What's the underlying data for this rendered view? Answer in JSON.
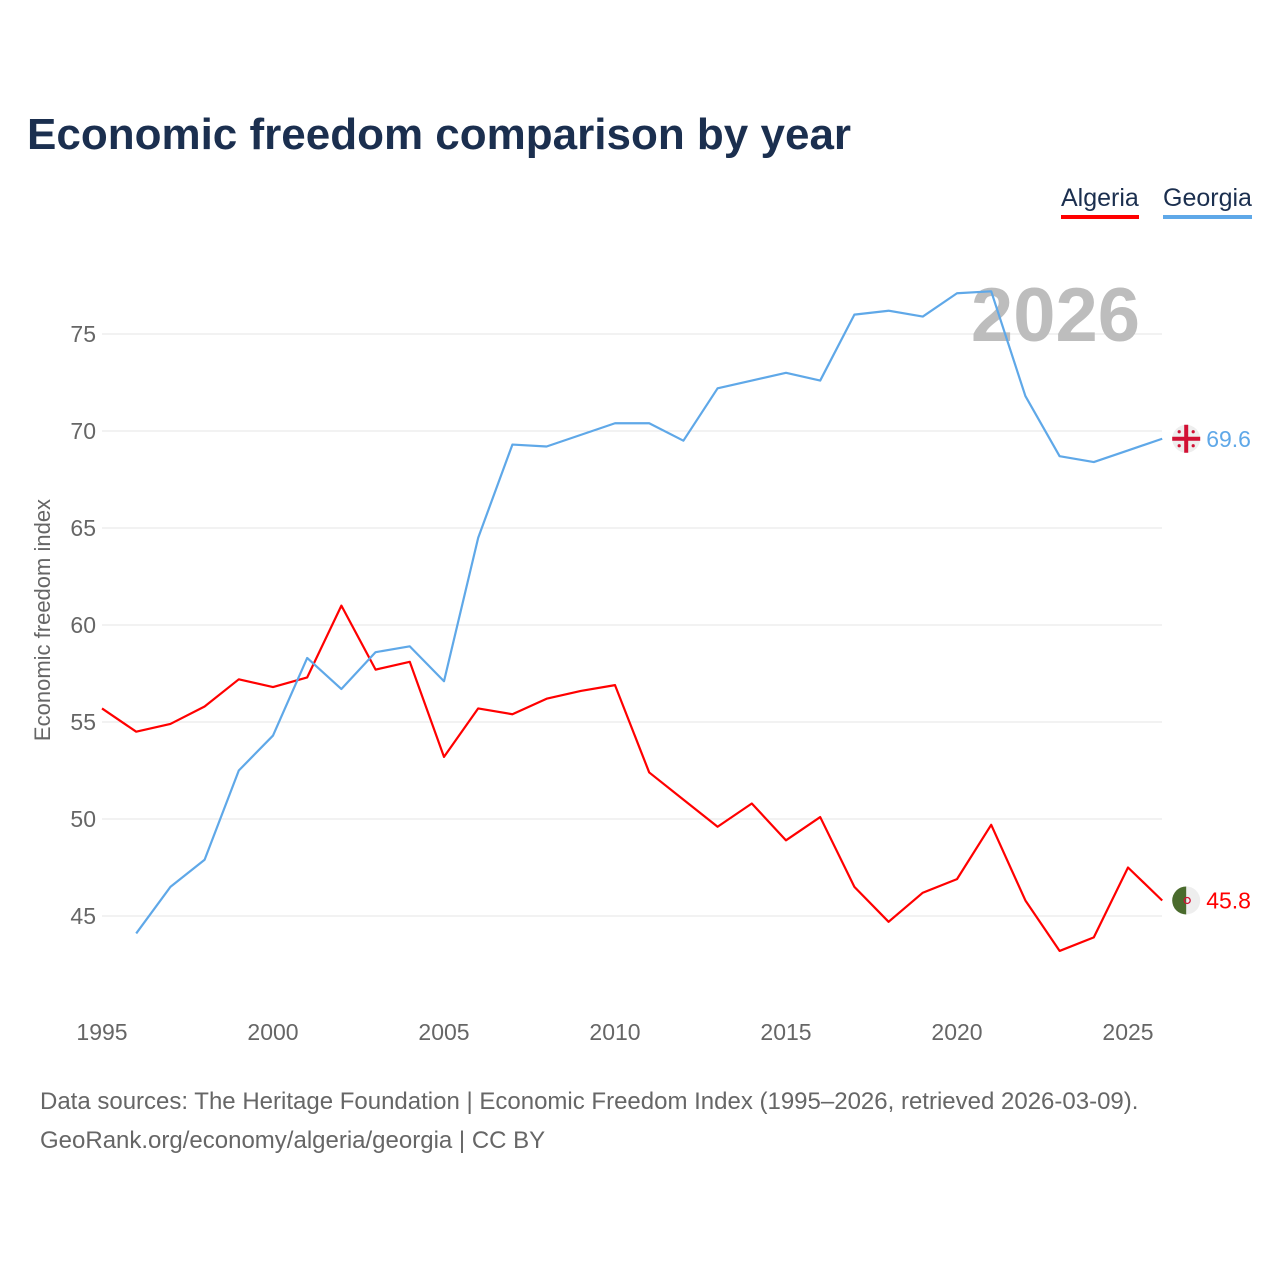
{
  "chart_data": {
    "type": "line",
    "title": "Economic freedom comparison by year",
    "xlabel": "",
    "ylabel": "Economic freedom index",
    "xlim": [
      1995,
      2026
    ],
    "ylim": [
      40.5,
      79
    ],
    "x_ticks": [
      1995,
      2000,
      2005,
      2010,
      2015,
      2020,
      2025
    ],
    "y_ticks": [
      45,
      50,
      55,
      60,
      65,
      70,
      75
    ],
    "grid": true,
    "legend_position": "top-right",
    "year_watermark": "2026",
    "series": [
      {
        "name": "Algeria",
        "color": "#ff0000",
        "end_label": "45.8",
        "flag": "algeria-flag",
        "x": [
          1995,
          1996,
          1997,
          1998,
          1999,
          2000,
          2001,
          2002,
          2003,
          2004,
          2005,
          2006,
          2007,
          2008,
          2009,
          2010,
          2011,
          2012,
          2013,
          2014,
          2015,
          2016,
          2017,
          2018,
          2019,
          2020,
          2021,
          2022,
          2023,
          2024,
          2025,
          2026
        ],
        "values": [
          55.7,
          54.5,
          54.9,
          55.8,
          57.2,
          56.8,
          57.3,
          61.0,
          57.7,
          58.1,
          53.2,
          55.7,
          55.4,
          56.2,
          56.6,
          56.9,
          52.4,
          51.0,
          49.6,
          50.8,
          48.9,
          50.1,
          46.5,
          44.7,
          46.2,
          46.9,
          49.7,
          45.8,
          43.2,
          43.9,
          47.5,
          45.8
        ]
      },
      {
        "name": "Georgia",
        "color": "#5fa8e8",
        "end_label": "69.6",
        "flag": "georgia-flag",
        "x": [
          1996,
          1997,
          1998,
          1999,
          2000,
          2001,
          2002,
          2003,
          2004,
          2005,
          2006,
          2007,
          2008,
          2009,
          2010,
          2011,
          2012,
          2013,
          2014,
          2015,
          2016,
          2017,
          2018,
          2019,
          2020,
          2021,
          2022,
          2023,
          2024,
          2025,
          2026
        ],
        "values": [
          44.1,
          46.5,
          47.9,
          52.5,
          54.3,
          58.3,
          56.7,
          58.6,
          58.9,
          57.1,
          64.5,
          69.3,
          69.2,
          69.8,
          70.4,
          70.4,
          69.5,
          72.2,
          72.6,
          73.0,
          72.6,
          76.0,
          76.2,
          75.9,
          77.1,
          77.2,
          71.8,
          68.7,
          68.4,
          69.0,
          69.6
        ]
      }
    ]
  },
  "footer": {
    "line1": "Data sources: The Heritage Foundation | Economic Freedom Index (1995–2026, retrieved 2026-03-09).",
    "line2": "GeoRank.org/economy/algeria/georgia | CC BY"
  }
}
